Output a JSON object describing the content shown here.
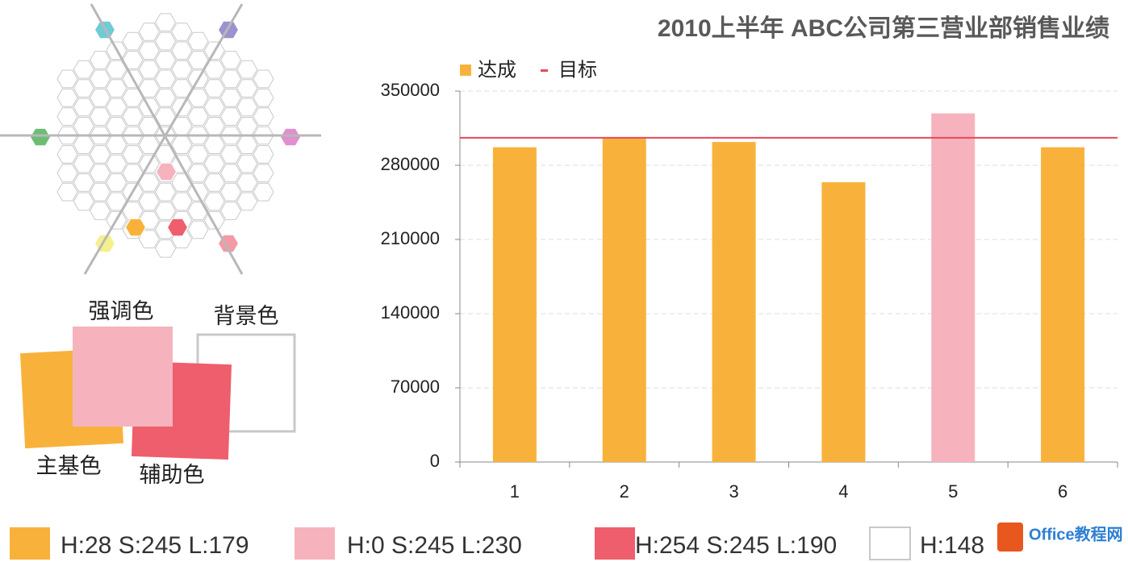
{
  "chart_data": {
    "type": "bar",
    "title": "2010上半年 ABC公司第三营业部销售业绩",
    "categories": [
      "1",
      "2",
      "3",
      "4",
      "5",
      "6"
    ],
    "series": [
      {
        "name": "达成",
        "color": "#f8b23b",
        "colors": [
          "#f8b23b",
          "#f8b23b",
          "#f8b23b",
          "#f8b23b",
          "#f6b3bd",
          "#f8b23b"
        ],
        "values": [
          297000,
          306000,
          302000,
          264000,
          329000,
          297000
        ]
      },
      {
        "name": "目标",
        "color": "#e8485a",
        "type": "line",
        "values": [
          306000,
          306000,
          306000,
          306000,
          306000,
          306000
        ]
      }
    ],
    "ylim": [
      0,
      350000
    ],
    "yticks": [
      0,
      70000,
      140000,
      210000,
      280000,
      350000
    ],
    "grid": true
  },
  "swatch_labels": [
    "强调色",
    "背景色",
    "主基色",
    "辅助色"
  ],
  "palette": [
    {
      "label": "H:28  S:245  L:179",
      "color": "#f8b23b"
    },
    {
      "label": "H:0  S:245  L:230",
      "color": "#f6b3bd"
    },
    {
      "label": "H:254  S:245  L:190",
      "color": "#ee5e6d"
    },
    {
      "label": "H:148",
      "color": "#ffffff"
    }
  ],
  "watermark": "Office教程网"
}
